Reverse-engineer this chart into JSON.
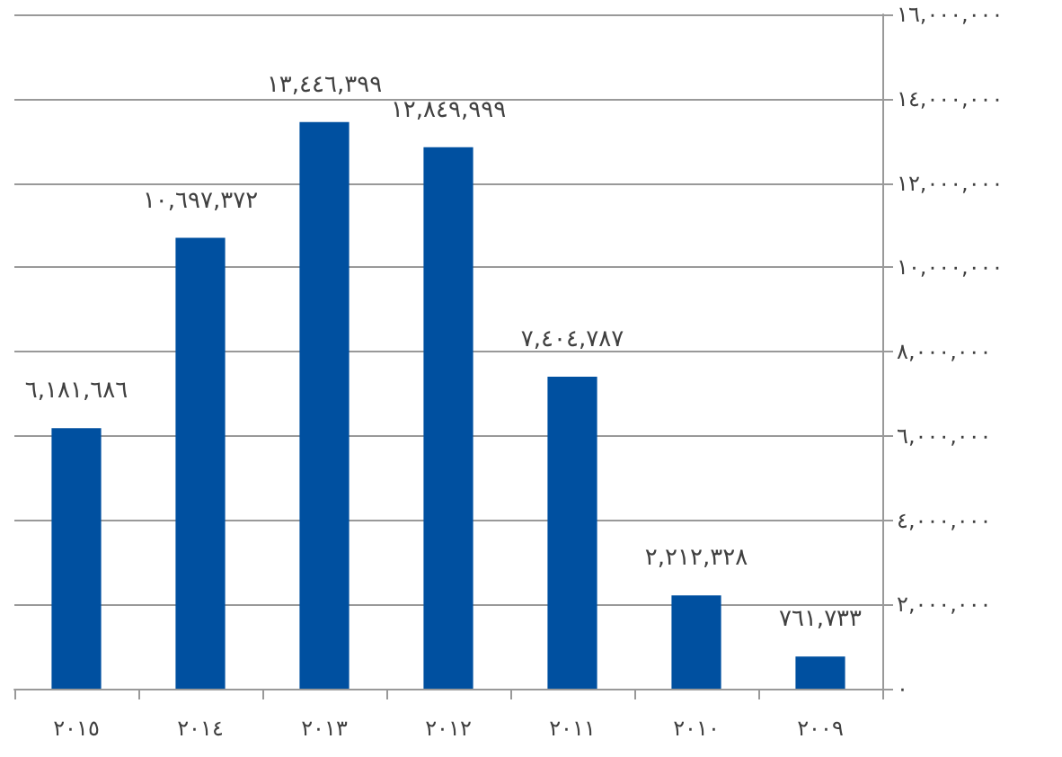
{
  "chart_data": {
    "type": "bar",
    "categories": [
      "٢٠١٥",
      "٢٠١٤",
      "٢٠١٣",
      "٢٠١٢",
      "٢٠١١",
      "٢٠١٠",
      "٢٠٠٩"
    ],
    "values": [
      6181686,
      10697372,
      13446399,
      12849999,
      7404787,
      2212328,
      761733
    ],
    "value_labels": [
      "٦,١٨١,٦٨٦",
      "١٠,٦٩٧,٣٧٢",
      "١٣,٤٤٦,٣٩٩",
      "١٢,٨٤٩,٩٩٩",
      "٧,٤٠٤,٧٨٧",
      "٢,٢١٢,٣٢٨",
      "٧٦١,٧٣٣"
    ],
    "color": "#0050a0",
    "ylim": [
      0,
      16000000
    ],
    "yticks": [
      {
        "value": 0,
        "label": "٠"
      },
      {
        "value": 2000000,
        "label": "٢,٠٠٠,٠٠٠"
      },
      {
        "value": 4000000,
        "label": "٤,٠٠٠,٠٠٠"
      },
      {
        "value": 6000000,
        "label": "٦,٠٠٠,٠٠٠"
      },
      {
        "value": 8000000,
        "label": "٨,٠٠٠,٠٠٠"
      },
      {
        "value": 10000000,
        "label": "١٠,٠٠٠,٠٠٠"
      },
      {
        "value": 12000000,
        "label": "١٢,٠٠٠,٠٠٠"
      },
      {
        "value": 14000000,
        "label": "١٤,٠٠٠,٠٠٠"
      },
      {
        "value": 16000000,
        "label": "١٦,٠٠٠,٠٠٠"
      }
    ],
    "grid": "y"
  }
}
